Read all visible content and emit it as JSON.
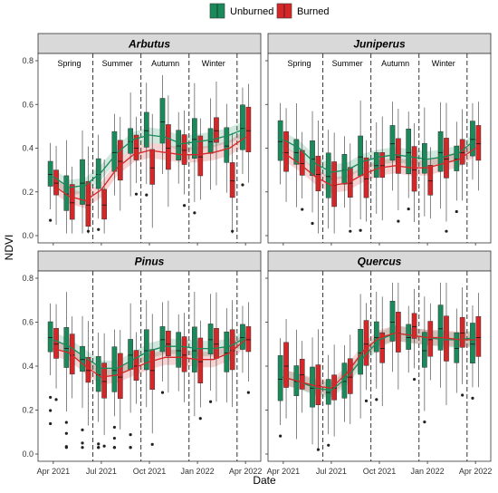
{
  "chart_data": {
    "type": "box",
    "legend": {
      "placement": "top-center",
      "entries": [
        {
          "name": "Unburned",
          "color": "#1a8a5a"
        },
        {
          "name": "Burned",
          "color": "#d62728"
        }
      ]
    },
    "xlabel": "Date",
    "ylabel": "NDVI",
    "x_ticks": [
      "Apr 2021",
      "Jul 2021",
      "Oct 2021",
      "Jan 2022",
      "Apr 2022"
    ],
    "y_ticks": [
      "0.0",
      "0.2",
      "0.4",
      "0.6",
      "0.8"
    ],
    "ylim": [
      0,
      0.8
    ],
    "season_dividers": [
      "Jul 2021",
      "Oct 2021",
      "Jan 2022",
      "Apr 2022"
    ],
    "season_labels": [
      "Spring",
      "Summer",
      "Autumn",
      "Winter"
    ],
    "grid": false,
    "panels": [
      {
        "title": "Arbutus",
        "show_season_labels": true,
        "series": [
          {
            "name": "Unburned",
            "medians": [
              0.28,
              0.19,
              0.24,
              0.28,
              0.38,
              0.43,
              0.48,
              0.52,
              0.41,
              0.44,
              0.43,
              0.41,
              0.49
            ],
            "smooth": [
              0.27,
              0.22,
              0.23,
              0.29,
              0.38,
              0.44,
              0.46,
              0.45,
              0.42,
              0.43,
              0.44,
              0.46,
              0.49
            ]
          },
          {
            "name": "Burned",
            "medians": [
              0.24,
              0.15,
              0.14,
              0.14,
              0.34,
              0.4,
              0.31,
              0.4,
              0.39,
              0.36,
              0.48,
              0.25,
              0.48
            ],
            "smooth": [
              0.23,
              0.18,
              0.16,
              0.21,
              0.31,
              0.37,
              0.39,
              0.38,
              0.37,
              0.37,
              0.38,
              0.4,
              0.45
            ]
          }
        ]
      },
      {
        "title": "Juniperus",
        "show_season_labels": true,
        "series": [
          {
            "name": "Unburned",
            "medians": [
              0.43,
              0.38,
              0.35,
              0.27,
              0.3,
              0.36,
              0.32,
              0.42,
              0.38,
              0.35,
              0.38,
              0.35,
              0.44
            ],
            "smooth": [
              0.44,
              0.4,
              0.33,
              0.29,
              0.3,
              0.34,
              0.36,
              0.37,
              0.36,
              0.35,
              0.36,
              0.38,
              0.44
            ]
          },
          {
            "name": "Burned",
            "medians": [
              0.38,
              0.33,
              0.28,
              0.23,
              0.24,
              0.26,
              0.32,
              0.36,
              0.3,
              0.25,
              0.35,
              0.38,
              0.42
            ],
            "smooth": [
              0.38,
              0.33,
              0.27,
              0.23,
              0.24,
              0.28,
              0.31,
              0.32,
              0.31,
              0.31,
              0.33,
              0.35,
              0.4
            ]
          }
        ]
      },
      {
        "title": "Pinus",
        "show_season_labels": false,
        "series": [
          {
            "name": "Unburned",
            "medians": [
              0.53,
              0.48,
              0.43,
              0.36,
              0.38,
              0.45,
              0.47,
              0.52,
              0.47,
              0.47,
              0.52,
              0.46,
              0.53
            ],
            "smooth": [
              0.52,
              0.49,
              0.44,
              0.39,
              0.39,
              0.43,
              0.47,
              0.49,
              0.49,
              0.48,
              0.48,
              0.49,
              0.53
            ]
          },
          {
            "name": "Burned",
            "medians": [
              0.5,
              0.45,
              0.38,
              0.33,
              0.35,
              0.4,
              0.38,
              0.5,
              0.45,
              0.42,
              0.5,
              0.47,
              0.52
            ],
            "smooth": [
              0.48,
              0.46,
              0.4,
              0.35,
              0.36,
              0.39,
              0.42,
              0.44,
              0.44,
              0.43,
              0.43,
              0.46,
              0.52
            ]
          }
        ]
      },
      {
        "title": "Quercus",
        "show_season_labels": false,
        "series": [
          {
            "name": "Unburned",
            "medians": [
              0.34,
              0.33,
              0.3,
              0.28,
              0.33,
              0.46,
              0.53,
              0.6,
              0.53,
              0.47,
              0.57,
              0.48,
              0.5
            ],
            "smooth": [
              0.35,
              0.33,
              0.3,
              0.29,
              0.35,
              0.44,
              0.52,
              0.55,
              0.54,
              0.53,
              0.52,
              0.52,
              0.53
            ]
          },
          {
            "name": "Burned",
            "medians": [
              0.4,
              0.36,
              0.31,
              0.3,
              0.35,
              0.5,
              0.48,
              0.55,
              0.58,
              0.52,
              0.52,
              0.55,
              0.53
            ],
            "smooth": [
              0.35,
              0.33,
              0.31,
              0.3,
              0.37,
              0.47,
              0.53,
              0.55,
              0.54,
              0.53,
              0.53,
              0.52,
              0.52
            ]
          }
        ]
      }
    ]
  }
}
